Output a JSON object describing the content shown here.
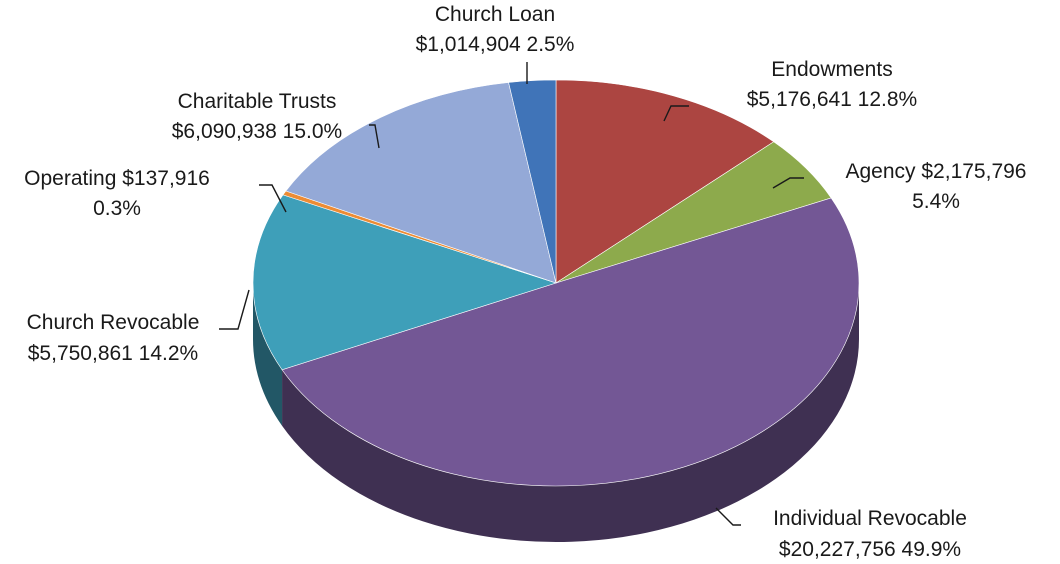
{
  "chart_data": {
    "type": "pie",
    "title": "",
    "style": "3d-tilted",
    "legend": "none",
    "slices": [
      {
        "label": "Endowments",
        "value_text": "$5,176,641",
        "percent_text": "12.8%",
        "value": 5176641,
        "percent": 12.8,
        "color": "#ac4541"
      },
      {
        "label": "Agency",
        "value_text": "$2,175,796",
        "percent_text": "5.4%",
        "value": 2175796,
        "percent": 5.4,
        "color": "#8daa4c"
      },
      {
        "label": "Individual Revocable",
        "value_text": "$20,227,756",
        "percent_text": "49.9%",
        "value": 20227756,
        "percent": 49.9,
        "color": "#735795"
      },
      {
        "label": "Church Revocable",
        "value_text": "$5,750,861",
        "percent_text": "14.2%",
        "value": 5750861,
        "percent": 14.2,
        "color": "#3e9fb9"
      },
      {
        "label": "Operating",
        "value_text": "$137,916",
        "percent_text": "0.3%",
        "value": 137916,
        "percent": 0.3,
        "color": "#ec8c35"
      },
      {
        "label": "Charitable Trusts",
        "value_text": "$6,090,938",
        "percent_text": "15.0%",
        "value": 6090938,
        "percent": 15.0,
        "color": "#94a9d7"
      },
      {
        "label": "Church Loan",
        "value_text": "$1,014,904",
        "percent_text": "2.5%",
        "value": 1014904,
        "percent": 2.5,
        "color": "#4074b8"
      }
    ]
  }
}
